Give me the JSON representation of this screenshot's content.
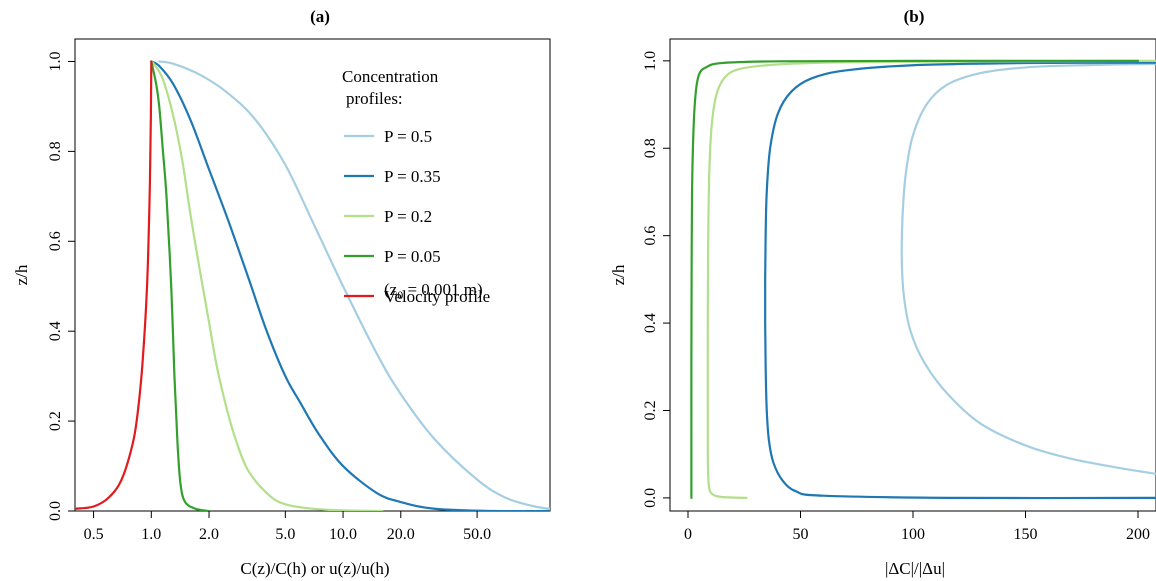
{
  "chart_data": [
    {
      "type": "line",
      "title": "(a)",
      "xlabel": "C(z)/C(h) or u(z)/u(h)",
      "ylabel": "z/h",
      "xscale": "log",
      "xlim": [
        0.4,
        120
      ],
      "ylim": [
        0,
        1.05
      ],
      "xticks": [
        {
          "value": 0.5,
          "label": "0.5"
        },
        {
          "value": 1.0,
          "label": "1.0"
        },
        {
          "value": 2.0,
          "label": "2.0"
        },
        {
          "value": 5.0,
          "label": "5.0"
        },
        {
          "value": 10.0,
          "label": "10.0"
        },
        {
          "value": 20.0,
          "label": "20.0"
        },
        {
          "value": 50.0,
          "label": "50.0"
        }
      ],
      "yticks": [
        {
          "value": 0.0,
          "label": "0.0"
        },
        {
          "value": 0.2,
          "label": "0.2"
        },
        {
          "value": 0.4,
          "label": "0.4"
        },
        {
          "value": 0.6,
          "label": "0.6"
        },
        {
          "value": 0.8,
          "label": "0.8"
        },
        {
          "value": 1.0,
          "label": "1.0"
        }
      ],
      "legend": {
        "placement": "top-right",
        "title_line1": "Concentration",
        "title_line2": "profiles:",
        "entries": [
          "P = 0.5",
          "P = 0.35",
          "P = 0.2",
          "P = 0.05",
          "Velocity profile"
        ],
        "velocity_note_prefix": "(z",
        "velocity_note_sub": "0",
        "velocity_note_suffix": " = 0.001 m)"
      },
      "series": [
        {
          "name": "P = 0.5",
          "color": "#a6cee3",
          "points": [
            [
              120,
              0.005
            ],
            [
              100,
              0.01
            ],
            [
              70,
              0.03
            ],
            [
              50,
              0.07
            ],
            [
              30,
              0.16
            ],
            [
              20,
              0.26
            ],
            [
              15,
              0.35
            ],
            [
              10,
              0.5
            ],
            [
              7,
              0.64
            ],
            [
              5,
              0.77
            ],
            [
              3.5,
              0.87
            ],
            [
              2.5,
              0.93
            ],
            [
              1.8,
              0.97
            ],
            [
              1.3,
              0.995
            ],
            [
              1.1,
              1.0
            ]
          ]
        },
        {
          "name": "P = 0.35",
          "color": "#1f78b4",
          "points": [
            [
              120,
              0.0
            ],
            [
              60,
              0.0
            ],
            [
              30,
              0.005
            ],
            [
              20,
              0.02
            ],
            [
              15,
              0.04
            ],
            [
              10,
              0.1
            ],
            [
              7.5,
              0.17
            ],
            [
              6,
              0.24
            ],
            [
              5,
              0.3
            ],
            [
              4,
              0.4
            ],
            [
              3.2,
              0.52
            ],
            [
              2.5,
              0.65
            ],
            [
              2,
              0.76
            ],
            [
              1.6,
              0.87
            ],
            [
              1.3,
              0.95
            ],
            [
              1.1,
              0.99
            ],
            [
              1.0,
              1.0
            ]
          ]
        },
        {
          "name": "P = 0.2",
          "color": "#b2df8a",
          "points": [
            [
              16,
              0.0
            ],
            [
              8,
              0.003
            ],
            [
              5,
              0.015
            ],
            [
              4,
              0.04
            ],
            [
              3.2,
              0.09
            ],
            [
              2.8,
              0.15
            ],
            [
              2.5,
              0.22
            ],
            [
              2.2,
              0.32
            ],
            [
              2.0,
              0.42
            ],
            [
              1.8,
              0.53
            ],
            [
              1.6,
              0.66
            ],
            [
              1.45,
              0.78
            ],
            [
              1.3,
              0.88
            ],
            [
              1.15,
              0.96
            ],
            [
              1.05,
              0.99
            ],
            [
              1.0,
              1.0
            ]
          ]
        },
        {
          "name": "P = 0.05",
          "color": "#33a02c",
          "points": [
            [
              2.0,
              0.0
            ],
            [
              1.7,
              0.005
            ],
            [
              1.5,
              0.02
            ],
            [
              1.42,
              0.06
            ],
            [
              1.37,
              0.15
            ],
            [
              1.32,
              0.3
            ],
            [
              1.27,
              0.5
            ],
            [
              1.2,
              0.7
            ],
            [
              1.15,
              0.8
            ],
            [
              1.1,
              0.9
            ],
            [
              1.06,
              0.95
            ],
            [
              1.0,
              1.0
            ]
          ]
        },
        {
          "name": "Velocity profile",
          "color": "#e31a1c",
          "points": [
            [
              0.4,
              0.005
            ],
            [
              0.5,
              0.01
            ],
            [
              0.6,
              0.03
            ],
            [
              0.7,
              0.07
            ],
            [
              0.8,
              0.15
            ],
            [
              0.85,
              0.22
            ],
            [
              0.9,
              0.33
            ],
            [
              0.95,
              0.5
            ],
            [
              0.98,
              0.7
            ],
            [
              0.995,
              0.88
            ],
            [
              1.0,
              1.0
            ]
          ]
        }
      ]
    },
    {
      "type": "line",
      "title": "(b)",
      "xlabel": "|ΔC|/|Δu|",
      "ylabel": "z/h",
      "xlim": [
        -8,
        208
      ],
      "ylim": [
        -0.03,
        1.05
      ],
      "xticks": [
        {
          "value": 0,
          "label": "0"
        },
        {
          "value": 50,
          "label": "50"
        },
        {
          "value": 100,
          "label": "100"
        },
        {
          "value": 150,
          "label": "150"
        },
        {
          "value": 200,
          "label": "200"
        }
      ],
      "yticks": [
        {
          "value": 0.0,
          "label": "0.0"
        },
        {
          "value": 0.2,
          "label": "0.2"
        },
        {
          "value": 0.4,
          "label": "0.4"
        },
        {
          "value": 0.6,
          "label": "0.6"
        },
        {
          "value": 0.8,
          "label": "0.8"
        },
        {
          "value": 1.0,
          "label": "1.0"
        }
      ],
      "series": [
        {
          "name": "P = 0.5",
          "color": "#a6cee3",
          "points": [
            [
              208,
              0.055
            ],
            [
              190,
              0.07
            ],
            [
              170,
              0.09
            ],
            [
              150,
              0.12
            ],
            [
              130,
              0.17
            ],
            [
              115,
              0.24
            ],
            [
              105,
              0.31
            ],
            [
              99,
              0.38
            ],
            [
              96,
              0.46
            ],
            [
              95,
              0.55
            ],
            [
              95.5,
              0.66
            ],
            [
              97,
              0.75
            ],
            [
              100,
              0.83
            ],
            [
              106,
              0.9
            ],
            [
              115,
              0.945
            ],
            [
              130,
              0.972
            ],
            [
              150,
              0.985
            ],
            [
              175,
              0.99
            ],
            [
              208,
              0.993
            ]
          ]
        },
        {
          "name": "P = 0.35",
          "color": "#1f78b4",
          "points": [
            [
              208,
              0.0
            ],
            [
              120,
              0.0
            ],
            [
              60,
              0.005
            ],
            [
              48,
              0.015
            ],
            [
              42,
              0.04
            ],
            [
              38,
              0.08
            ],
            [
              36,
              0.13
            ],
            [
              35,
              0.2
            ],
            [
              34.5,
              0.3
            ],
            [
              34.3,
              0.4
            ],
            [
              34.3,
              0.5
            ],
            [
              34.5,
              0.6
            ],
            [
              35,
              0.7
            ],
            [
              36.5,
              0.8
            ],
            [
              40,
              0.88
            ],
            [
              46,
              0.93
            ],
            [
              55,
              0.96
            ],
            [
              70,
              0.978
            ],
            [
              100,
              0.99
            ],
            [
              150,
              0.995
            ],
            [
              208,
              0.996
            ]
          ]
        },
        {
          "name": "P = 0.2",
          "color": "#b2df8a",
          "points": [
            [
              26,
              0.0
            ],
            [
              15,
              0.002
            ],
            [
              11,
              0.008
            ],
            [
              9.5,
              0.02
            ],
            [
              9,
              0.05
            ],
            [
              8.8,
              0.1
            ],
            [
              8.8,
              0.2
            ],
            [
              8.8,
              0.4
            ],
            [
              9,
              0.6
            ],
            [
              9.5,
              0.75
            ],
            [
              10.5,
              0.85
            ],
            [
              12.5,
              0.92
            ],
            [
              16,
              0.96
            ],
            [
              22,
              0.98
            ],
            [
              35,
              0.99
            ],
            [
              60,
              0.996
            ],
            [
              100,
              0.998
            ],
            [
              150,
              0.999
            ],
            [
              208,
              1.0
            ]
          ]
        },
        {
          "name": "P = 0.05",
          "color": "#33a02c",
          "points": [
            [
              1.5,
              0.0
            ],
            [
              1.5,
              0.1
            ],
            [
              1.5,
              0.3
            ],
            [
              1.6,
              0.5
            ],
            [
              1.8,
              0.7
            ],
            [
              2.5,
              0.85
            ],
            [
              3.5,
              0.93
            ],
            [
              5,
              0.97
            ],
            [
              8,
              0.985
            ],
            [
              15,
              0.995
            ],
            [
              40,
              0.999
            ],
            [
              100,
              1.0
            ],
            [
              200,
              1.0
            ]
          ]
        }
      ]
    }
  ]
}
